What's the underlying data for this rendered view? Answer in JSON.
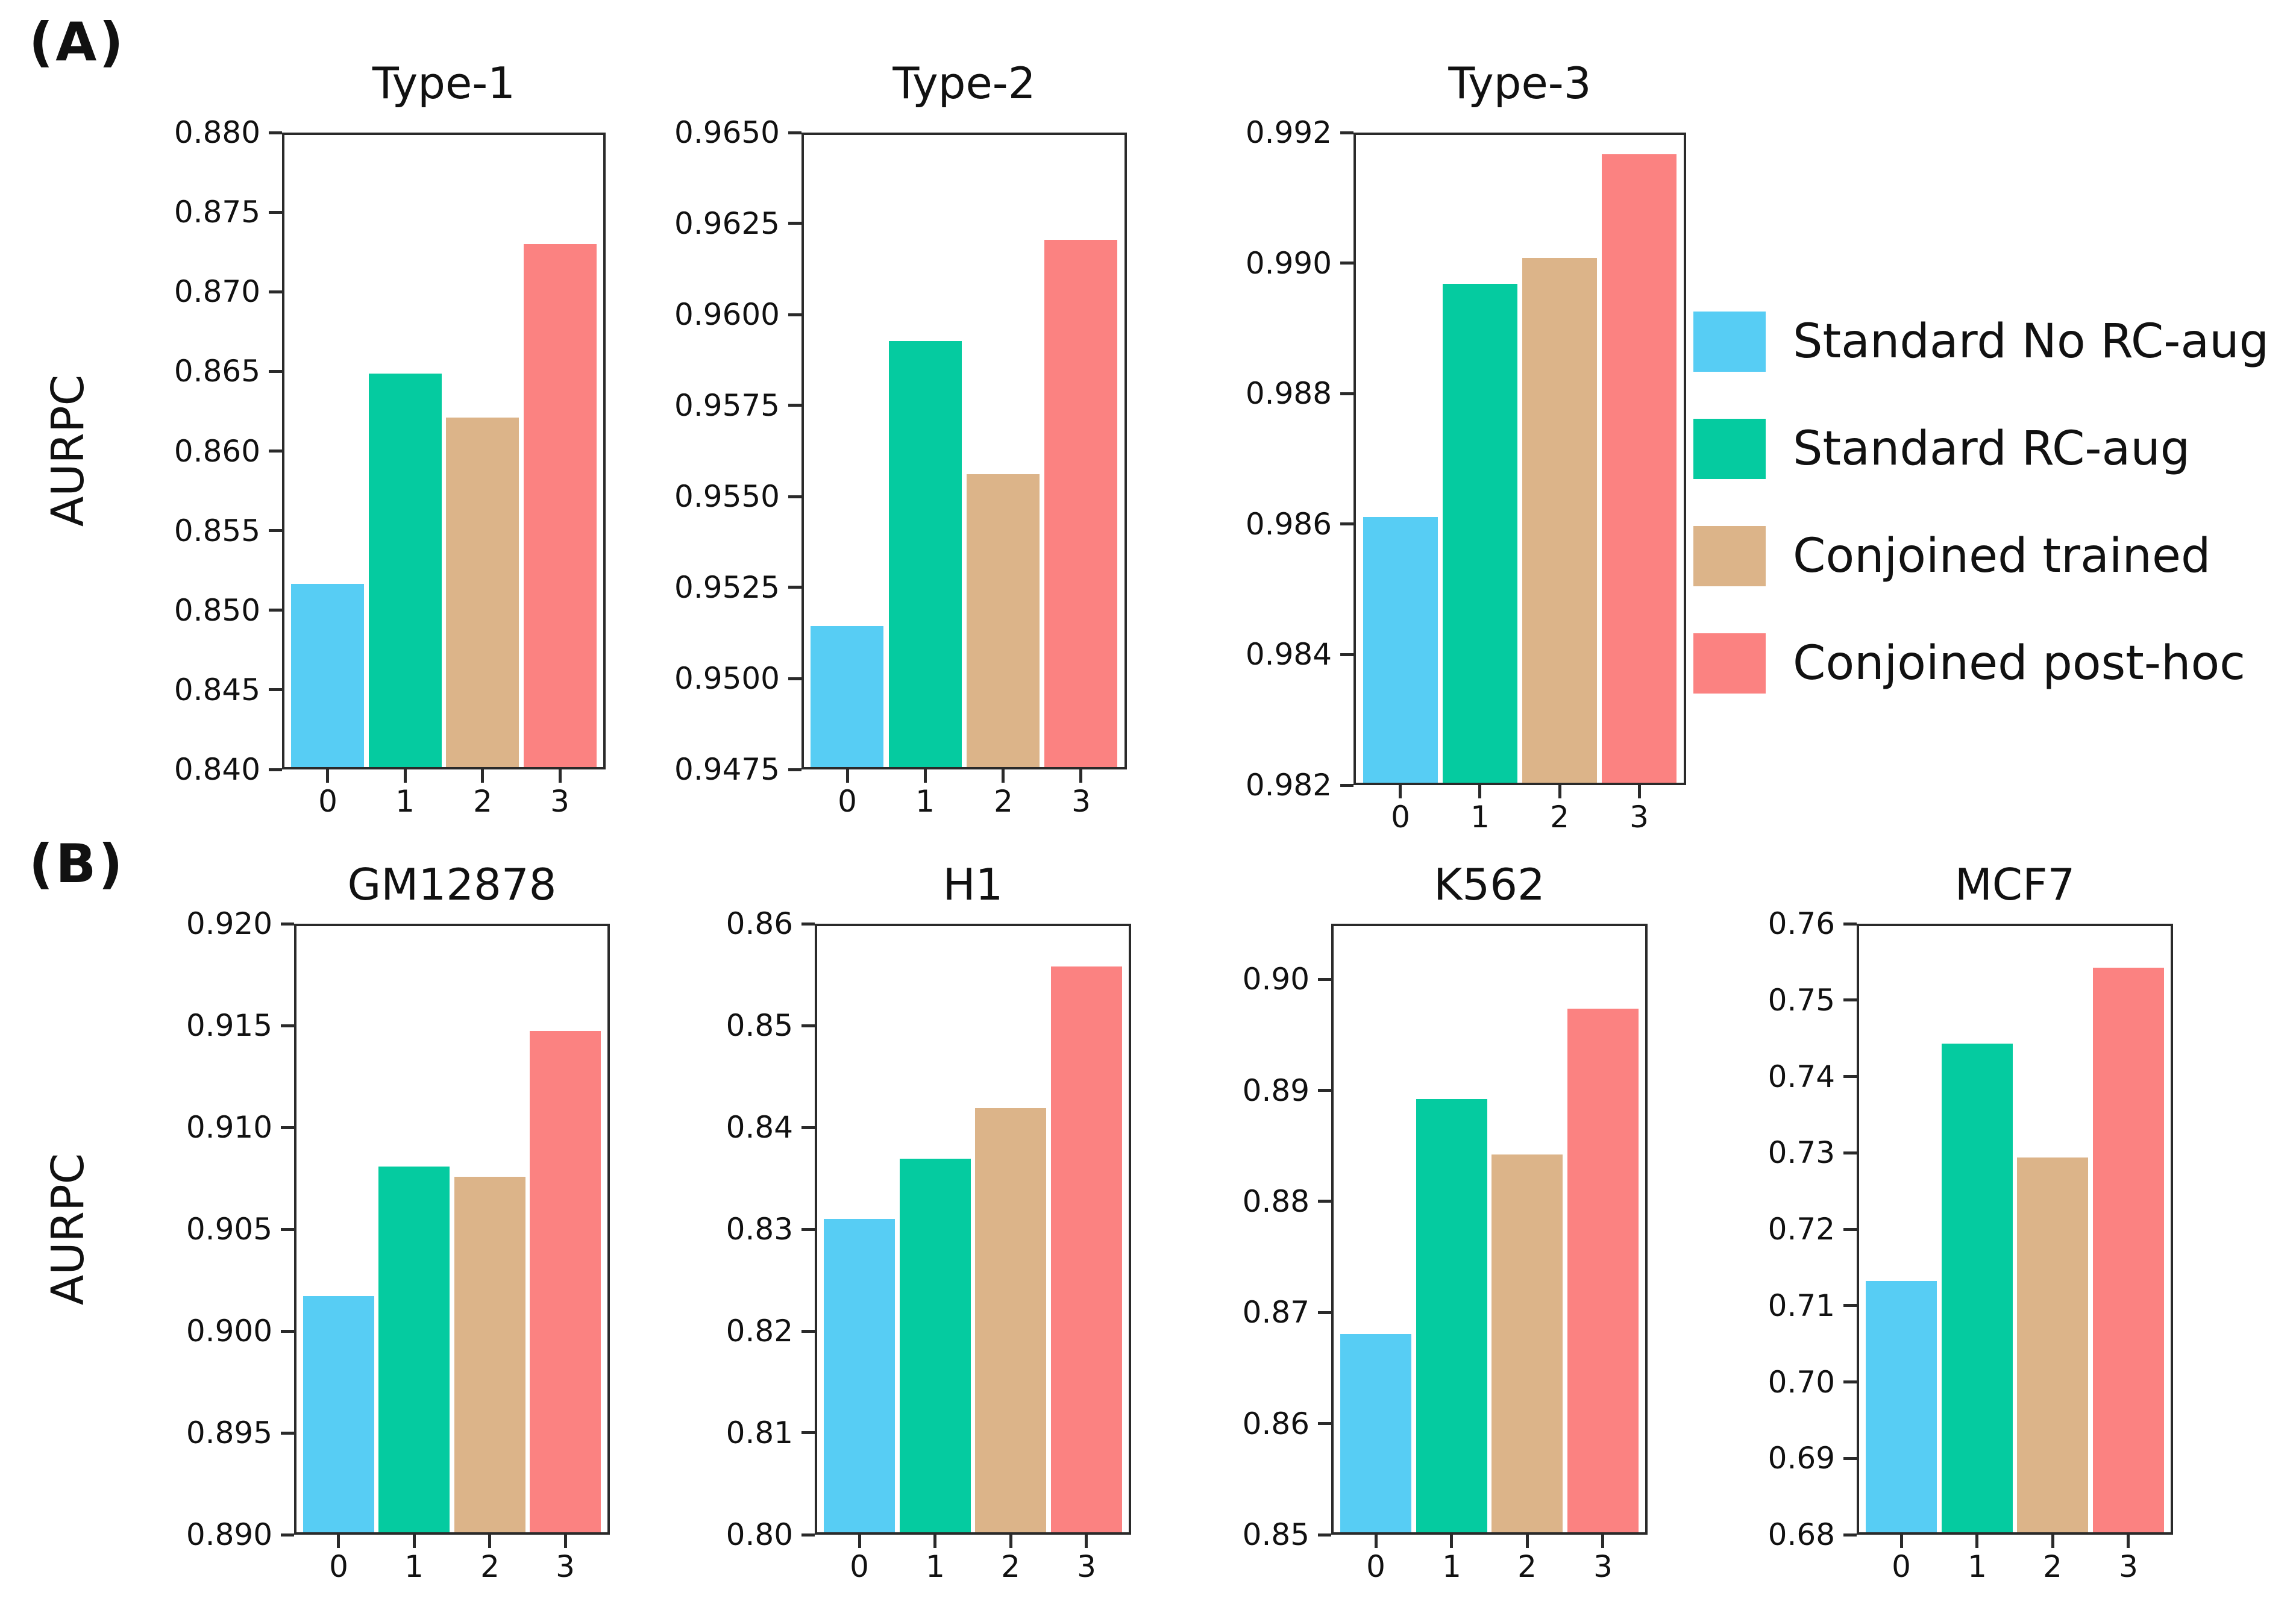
{
  "figure": {
    "panel_labels": {
      "a": "(A)",
      "b": "(B)"
    },
    "y_axis_label": "AURPC",
    "x_tick_labels": [
      "0",
      "1",
      "2",
      "3"
    ],
    "legend": {
      "position": "right",
      "items": [
        {
          "label": "Standard No RC-aug",
          "color": "#57cdf4"
        },
        {
          "label": "Standard RC-aug",
          "color": "#05cba0"
        },
        {
          "label": "Conjoined trained",
          "color": "#dcb489"
        },
        {
          "label": "Conjoined post-hoc",
          "color": "#fb8281"
        }
      ]
    }
  },
  "chart_data": [
    {
      "type": "bar",
      "panel": "A",
      "title": "Type-1",
      "xlabel": "",
      "ylabel": "AURPC",
      "categories": [
        "0",
        "1",
        "2",
        "3"
      ],
      "bar_labels": [
        "Standard No RC-aug",
        "Standard RC-aug",
        "Conjoined trained",
        "Conjoined post-hoc"
      ],
      "values": [
        0.8516,
        0.8649,
        0.8621,
        0.8731
      ],
      "ylim": [
        0.84,
        0.88
      ],
      "grid": false,
      "yticks": [
        "0.880",
        "0.875",
        "0.870",
        "0.865",
        "0.860",
        "0.855",
        "0.850",
        "0.845",
        "0.840"
      ]
    },
    {
      "type": "bar",
      "panel": "A",
      "title": "Type-2",
      "xlabel": "",
      "ylabel": "AURPC",
      "categories": [
        "0",
        "1",
        "2",
        "3"
      ],
      "bar_labels": [
        "Standard No RC-aug",
        "Standard RC-aug",
        "Conjoined trained",
        "Conjoined post-hoc"
      ],
      "values": [
        0.9514,
        0.9593,
        0.9556,
        0.9621
      ],
      "ylim": [
        0.9475,
        0.965
      ],
      "grid": false,
      "yticks": [
        "0.9650",
        "0.9625",
        "0.9600",
        "0.9575",
        "0.9550",
        "0.9525",
        "0.9500",
        "0.9475"
      ]
    },
    {
      "type": "bar",
      "panel": "A",
      "title": "Type-3",
      "xlabel": "",
      "ylabel": "AURPC",
      "categories": [
        "0",
        "1",
        "2",
        "3"
      ],
      "bar_labels": [
        "Standard No RC-aug",
        "Standard RC-aug",
        "Conjoined trained",
        "Conjoined post-hoc"
      ],
      "values": [
        0.9861,
        0.9897,
        0.9901,
        0.9917
      ],
      "ylim": [
        0.982,
        0.992
      ],
      "grid": false,
      "yticks": [
        "0.992",
        "0.990",
        "0.988",
        "0.986",
        "0.984",
        "0.982"
      ]
    },
    {
      "type": "bar",
      "panel": "B",
      "title": "GM12878",
      "xlabel": "",
      "ylabel": "AURPC",
      "categories": [
        "0",
        "1",
        "2",
        "3"
      ],
      "bar_labels": [
        "Standard No RC-aug",
        "Standard RC-aug",
        "Conjoined trained",
        "Conjoined post-hoc"
      ],
      "values": [
        0.9017,
        0.9081,
        0.9076,
        0.9148
      ],
      "ylim": [
        0.89,
        0.92
      ],
      "grid": false,
      "yticks": [
        "0.920",
        "0.915",
        "0.910",
        "0.905",
        "0.900",
        "0.895",
        "0.890"
      ]
    },
    {
      "type": "bar",
      "panel": "B",
      "title": "H1",
      "xlabel": "",
      "ylabel": "AURPC",
      "categories": [
        "0",
        "1",
        "2",
        "3"
      ],
      "bar_labels": [
        "Standard No RC-aug",
        "Standard RC-aug",
        "Conjoined trained",
        "Conjoined post-hoc"
      ],
      "values": [
        0.831,
        0.837,
        0.842,
        0.856
      ],
      "ylim": [
        0.8,
        0.86
      ],
      "grid": false,
      "yticks": [
        "0.86",
        "0.85",
        "0.84",
        "0.83",
        "0.82",
        "0.81",
        "0.80"
      ]
    },
    {
      "type": "bar",
      "panel": "B",
      "title": "K562",
      "xlabel": "",
      "ylabel": "AURPC",
      "categories": [
        "0",
        "1",
        "2",
        "3"
      ],
      "bar_labels": [
        "Standard No RC-aug",
        "Standard RC-aug",
        "Conjoined trained",
        "Conjoined post-hoc"
      ],
      "values": [
        0.868,
        0.8893,
        0.8843,
        0.8975
      ],
      "ylim": [
        0.85,
        0.905
      ],
      "grid": false,
      "yticks": [
        "0.90",
        "0.89",
        "0.88",
        "0.87",
        "0.86",
        "0.85"
      ]
    },
    {
      "type": "bar",
      "panel": "B",
      "title": "MCF7",
      "xlabel": "",
      "ylabel": "AURPC",
      "categories": [
        "0",
        "1",
        "2",
        "3"
      ],
      "bar_labels": [
        "Standard No RC-aug",
        "Standard RC-aug",
        "Conjoined trained",
        "Conjoined post-hoc"
      ],
      "values": [
        0.7132,
        0.7445,
        0.7295,
        0.7545
      ],
      "ylim": [
        0.68,
        0.76
      ],
      "grid": false,
      "yticks": [
        "0.76",
        "0.75",
        "0.74",
        "0.73",
        "0.72",
        "0.71",
        "0.70",
        "0.69",
        "0.68"
      ]
    }
  ]
}
